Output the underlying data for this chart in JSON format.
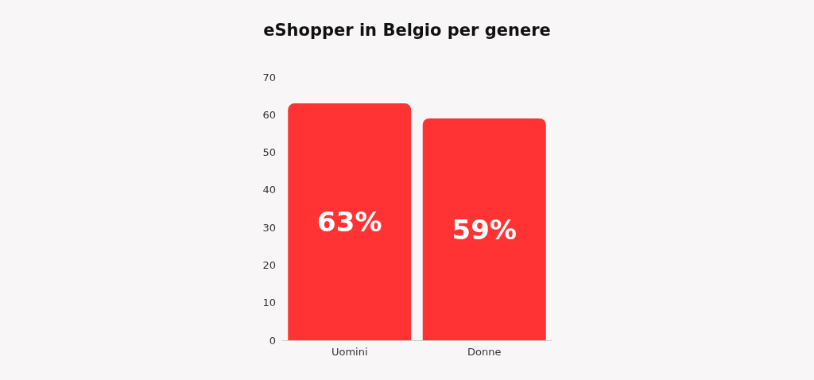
{
  "chart_data": {
    "type": "bar",
    "title": "eShopper in Belgio per genere",
    "categories": [
      "Uomini",
      "Donne"
    ],
    "values": [
      63,
      59
    ],
    "value_labels": [
      "63%",
      "59%"
    ],
    "color": "#ff3333",
    "ylim": [
      0,
      70
    ],
    "yticks": [
      0,
      10,
      20,
      30,
      40,
      50,
      60,
      70
    ],
    "grid": false
  }
}
